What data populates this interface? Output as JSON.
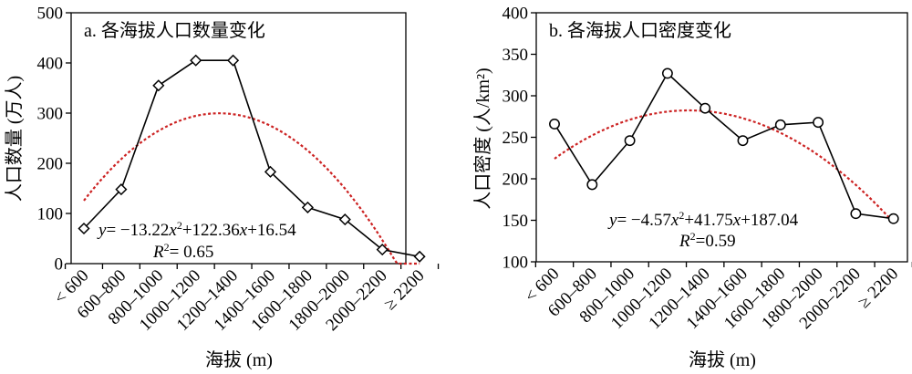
{
  "chart_data": [
    {
      "type": "line",
      "title": "a. 各海拔人口数量变化",
      "xlabel": "海拔 (m)",
      "ylabel": "人口数量 (万人)",
      "ylim": [
        0,
        500
      ],
      "yticks": [
        0,
        100,
        200,
        300,
        400,
        500
      ],
      "categories": [
        "< 600",
        "600–800",
        "800–1000",
        "1000–1200",
        "1200–1400",
        "1400–1600",
        "1600–1800",
        "1800–2000",
        "2000–2200",
        "≥ 2200"
      ],
      "values": [
        70,
        148,
        355,
        405,
        405,
        183,
        112,
        88,
        28,
        14
      ],
      "marker": "diamond",
      "trend": {
        "a": -13.22,
        "b": 122.36,
        "c": 16.54,
        "color": "#cc2222",
        "style": "dotted"
      },
      "equation": {
        "prefix": "y",
        "a": "−13.22",
        "b": "+122.36",
        "c": "+16.54",
        "r2_prefix": "R",
        "r2": "= 0.65"
      }
    },
    {
      "type": "line",
      "title": "b. 各海拔人口密度变化",
      "xlabel": "海拔 (m)",
      "ylabel": "人口密度 (人/km²)",
      "ylim": [
        100,
        400
      ],
      "yticks": [
        100,
        150,
        200,
        250,
        300,
        350,
        400
      ],
      "categories": [
        "< 600",
        "600–800",
        "800–1000",
        "1000–1200",
        "1200–1400",
        "1400–1600",
        "1600–1800",
        "1800–2000",
        "2000–2200",
        "≥ 2200"
      ],
      "values": [
        266,
        193,
        246,
        327,
        285,
        246,
        265,
        268,
        158,
        152
      ],
      "marker": "circle",
      "trend": {
        "a": -4.57,
        "b": 41.75,
        "c": 187.04,
        "color": "#cc2222",
        "style": "dotted"
      },
      "equation": {
        "prefix": "y",
        "a": "−4.57",
        "b": "+41.75",
        "c": "+187.04",
        "r2_prefix": "R",
        "r2": "=0.59"
      }
    }
  ]
}
